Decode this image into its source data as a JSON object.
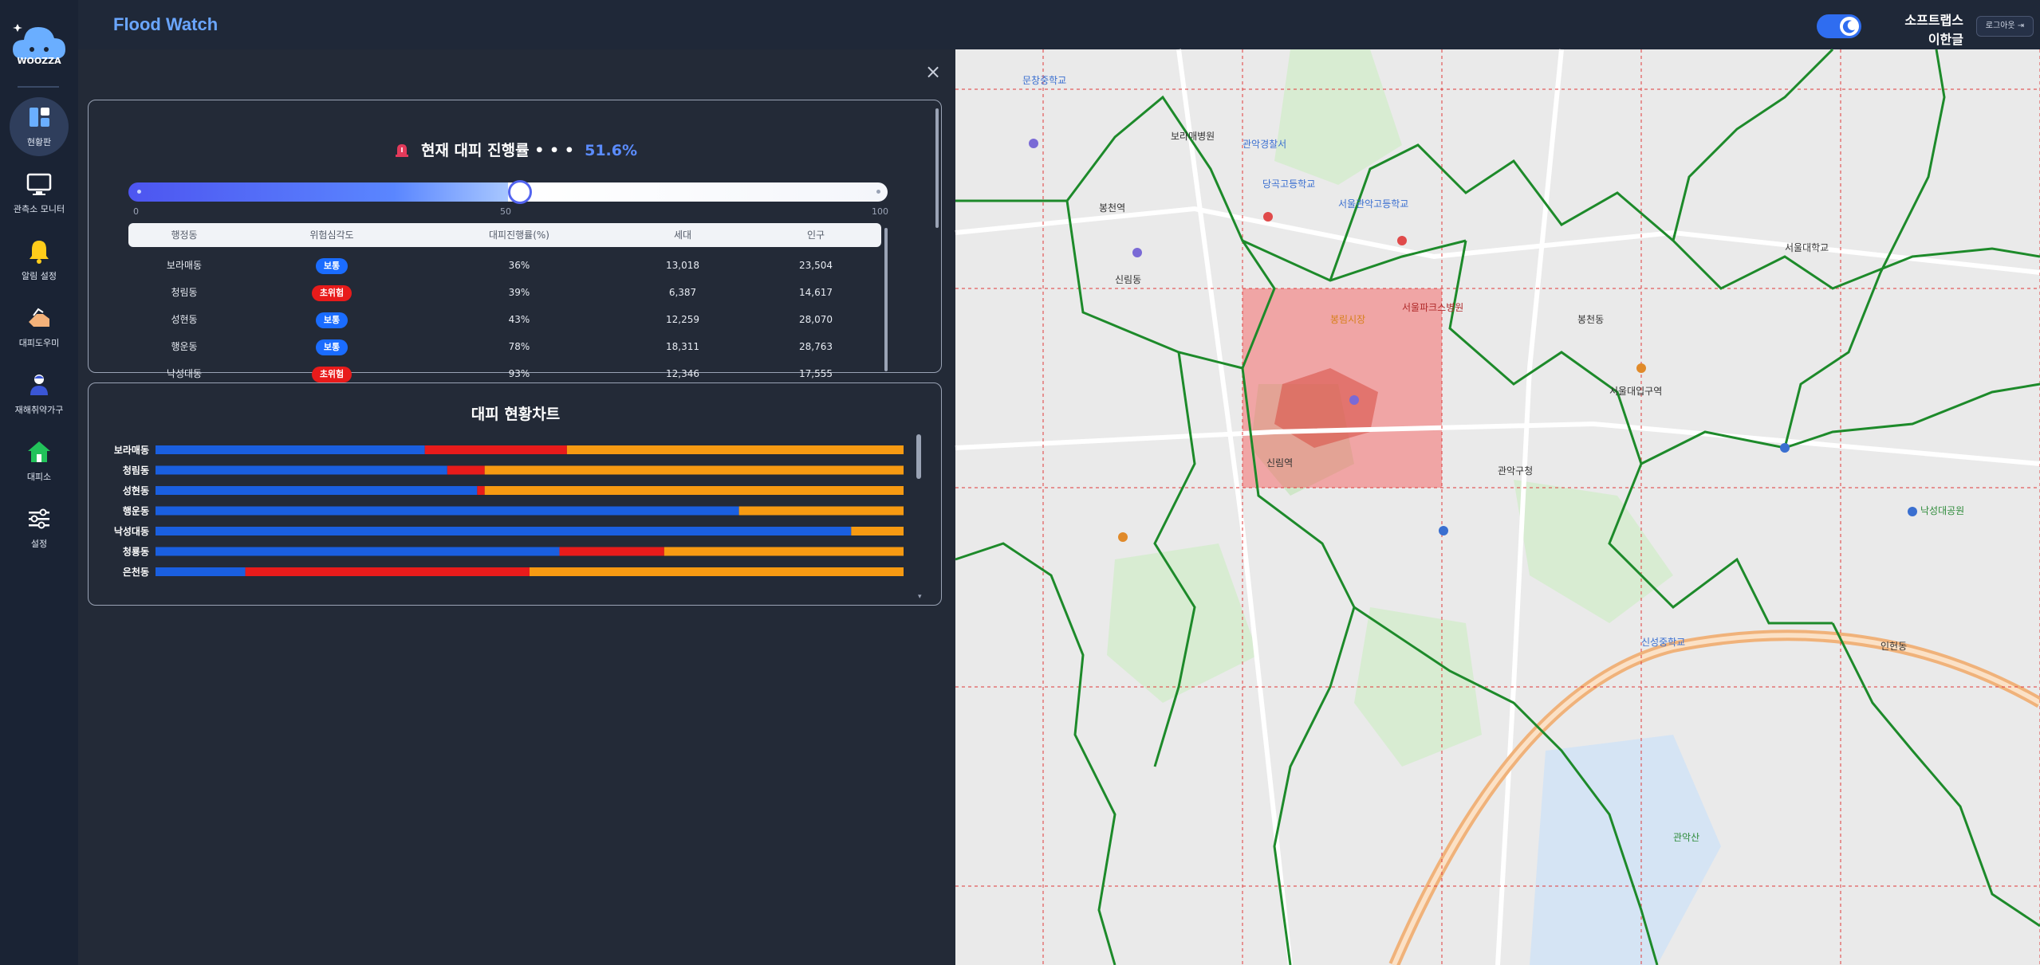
{
  "app": {
    "title": "Flood Watch",
    "logo_text": "WOOZZA"
  },
  "sidebar": {
    "items": [
      {
        "label": "현황판",
        "icon": "dashboard-icon",
        "active": true
      },
      {
        "label": "관측소 모니터",
        "icon": "monitor-icon",
        "active": false
      },
      {
        "label": "알림 설정",
        "icon": "bell-icon",
        "active": false
      },
      {
        "label": "대피도우미",
        "icon": "helper-hand-icon",
        "active": false
      },
      {
        "label": "재해취약가구",
        "icon": "vulnerable-person-icon",
        "active": false
      },
      {
        "label": "대피소",
        "icon": "shelter-house-icon",
        "active": false
      },
      {
        "label": "설정",
        "icon": "sliders-icon",
        "active": false
      }
    ]
  },
  "header": {
    "org": "소프트랩스",
    "user": "이한글",
    "logout_label": "로그아웃",
    "dark_mode_on": true
  },
  "progress_panel": {
    "title": "현재 대피 진행률 • • •",
    "percent": "51.6%",
    "slider_value": 51.6,
    "ticks": [
      "0",
      "50",
      "100"
    ],
    "columns": [
      "행정동",
      "위험심각도",
      "대피진행률(%)",
      "세대",
      "인구"
    ],
    "rows": [
      {
        "dong": "보라매동",
        "severity": "보통",
        "level": "normal",
        "progress": "36%",
        "households": "13,018",
        "population": "23,504"
      },
      {
        "dong": "청림동",
        "severity": "초위험",
        "level": "danger",
        "progress": "39%",
        "households": "6,387",
        "population": "14,617"
      },
      {
        "dong": "성현동",
        "severity": "보통",
        "level": "normal",
        "progress": "43%",
        "households": "12,259",
        "population": "28,070"
      },
      {
        "dong": "행운동",
        "severity": "보통",
        "level": "normal",
        "progress": "78%",
        "households": "18,311",
        "population": "28,763"
      },
      {
        "dong": "낙성대동",
        "severity": "초위험",
        "level": "danger",
        "progress": "93%",
        "households": "12,346",
        "population": "17,555"
      }
    ]
  },
  "chart_panel": {
    "title": "대피 현황차트"
  },
  "chart_data": {
    "type": "bar",
    "orientation": "horizontal",
    "stacked": true,
    "categories": [
      "보라매동",
      "청림동",
      "성현동",
      "행운동",
      "낙성대동",
      "청룡동",
      "은천동"
    ],
    "series": [
      {
        "color": "#1a5fe0",
        "values": [
          36,
          39,
          43,
          78,
          93,
          54,
          12
        ]
      },
      {
        "color": "#e81b1b",
        "values": [
          19,
          5,
          1,
          0,
          0,
          14,
          38
        ]
      },
      {
        "color": "#f79a12",
        "values": [
          45,
          56,
          56,
          22,
          7,
          32,
          50
        ]
      }
    ],
    "xlim": [
      0,
      100
    ],
    "title": "대피 현황차트"
  },
  "map": {
    "labels": [
      {
        "text": "보라매병원",
        "color": "default"
      },
      {
        "text": "문창중학교",
        "color": "blue"
      },
      {
        "text": "당곡고등학교",
        "color": "blue"
      },
      {
        "text": "관악경찰서",
        "color": "blue"
      },
      {
        "text": "봉천역",
        "color": "default"
      },
      {
        "text": "서울관악고등학교",
        "color": "blue"
      },
      {
        "text": "봉림시장",
        "color": "orange"
      },
      {
        "text": "서울파크스병원",
        "color": "red"
      },
      {
        "text": "봉천동",
        "color": "default"
      },
      {
        "text": "신림동",
        "color": "default"
      },
      {
        "text": "서울대학교",
        "color": "default"
      },
      {
        "text": "관악구청",
        "color": "default"
      },
      {
        "text": "신성중학교",
        "color": "blue"
      },
      {
        "text": "인헌동",
        "color": "default"
      },
      {
        "text": "낙성대공원",
        "color": "green"
      },
      {
        "text": "서울대입구역",
        "color": "default"
      },
      {
        "text": "신림역",
        "color": "default"
      },
      {
        "text": "관악산",
        "color": "green"
      }
    ]
  }
}
